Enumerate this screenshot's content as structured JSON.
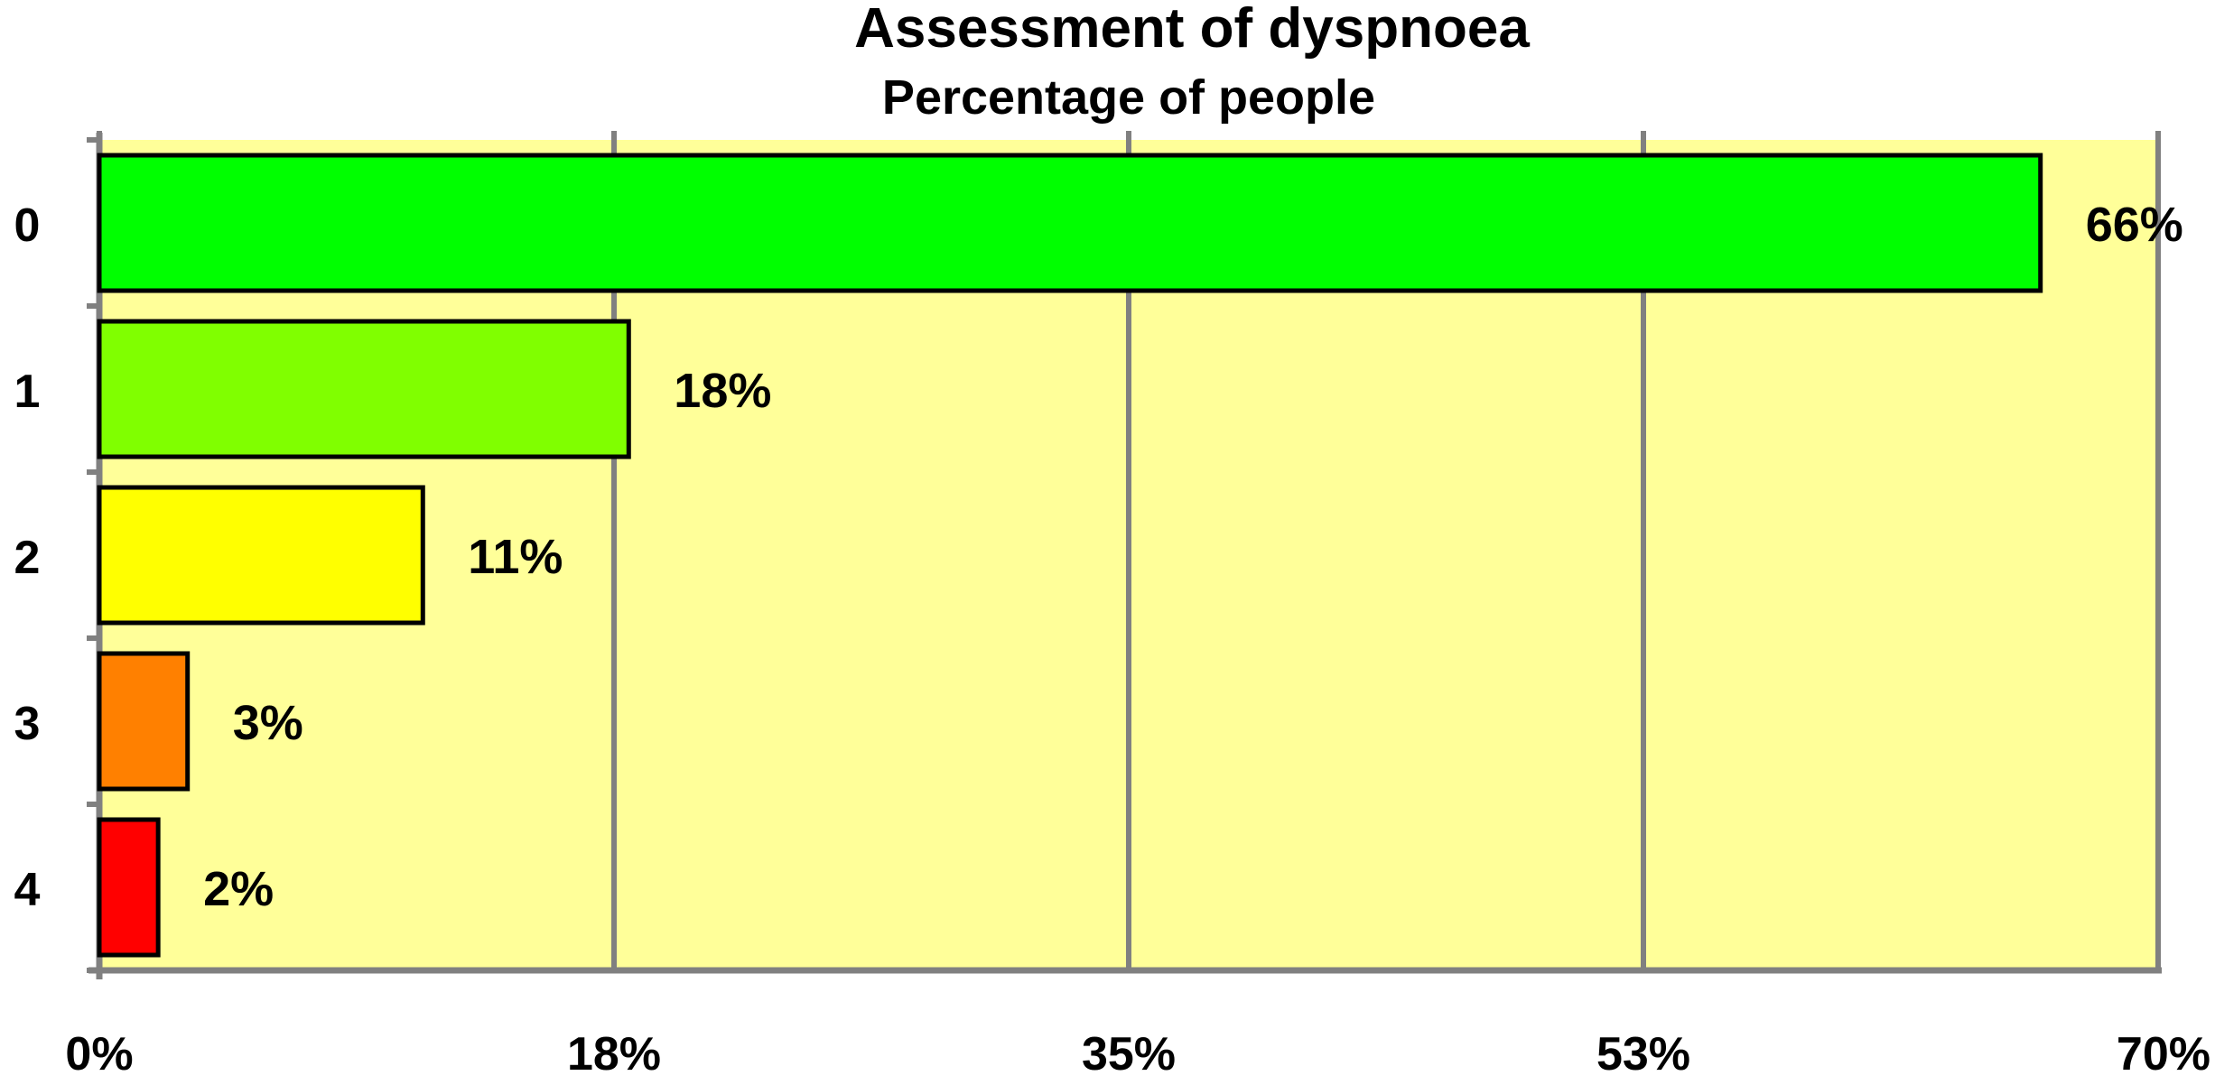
{
  "chart_data": {
    "type": "bar",
    "orientation": "horizontal",
    "title": "Assessment of dyspnoea",
    "subtitle": "Percentage of people",
    "categories": [
      "0",
      "1",
      "2",
      "3",
      "4"
    ],
    "values": [
      66,
      18,
      11,
      3,
      2
    ],
    "value_labels": [
      "66%",
      "18%",
      "11%",
      "3%",
      "2%"
    ],
    "bar_colors": [
      "#00ff00",
      "#80ff00",
      "#ffff00",
      "#ff8000",
      "#ff0000"
    ],
    "xlim": [
      0,
      70
    ],
    "x_ticks": [
      0,
      17.5,
      35,
      52.5,
      70
    ],
    "x_tick_labels": [
      "0%",
      "18%",
      "35%",
      "53%",
      "70%"
    ],
    "grid": true,
    "plot_background": "#ffff99",
    "gridline_color": "#808080",
    "legend": "none"
  }
}
